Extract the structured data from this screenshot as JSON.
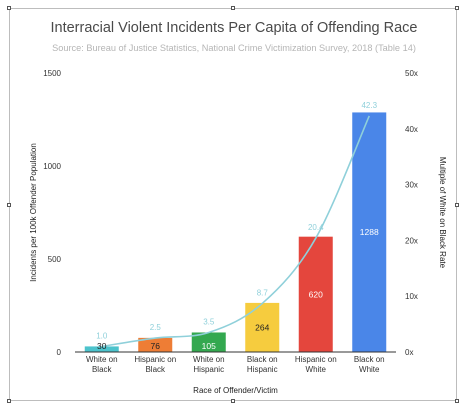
{
  "chart_data": {
    "type": "bar",
    "title": "Interracial Violent Incidents Per Capita of Offending Race",
    "subtitle": "Source: Bureau of Justice Statistics, National Crime Victimization Survey, 2018 (Table 14)",
    "categories": [
      [
        "White on",
        "Black"
      ],
      [
        "Hispanic on",
        "Black"
      ],
      [
        "White on",
        "Hispanic"
      ],
      [
        "Black on",
        "Hispanic"
      ],
      [
        "Hispanic on",
        "White"
      ],
      [
        "Black on",
        "White"
      ]
    ],
    "series": [
      {
        "values": [
          30,
          76,
          105,
          264,
          620,
          1288
        ]
      },
      {
        "values": [
          1.0,
          2.5,
          3.5,
          8.7,
          20.4,
          42.3
        ]
      }
    ],
    "bar_labels": [
      "30",
      "76",
      "105",
      "264",
      "620",
      "1288"
    ],
    "multiple_labels": [
      "1.0",
      "2.5",
      "3.5",
      "8.7",
      "20.4",
      "42.3"
    ],
    "bar_colors": [
      "#4cc3cc",
      "#ee7d35",
      "#33a84f",
      "#f6cc3e",
      "#e4463d",
      "#4a86e8"
    ],
    "bar_label_colors": [
      "#222222",
      "#222222",
      "#ffffff",
      "#222222",
      "#ffffff",
      "#ffffff"
    ],
    "line_color": "#8fd0da",
    "xlabel": "Race of Offender/Victim",
    "ylabel": "Incidents per 100k Offender Population",
    "y2label": "Multiple of White on Black Rate",
    "ylim": [
      0,
      1500
    ],
    "y_ticks": [
      0,
      500,
      1000,
      1500
    ],
    "y_tick_labels": [
      "0",
      "500",
      "1000",
      "1500"
    ],
    "y2lim": [
      0,
      50
    ],
    "y2_ticks": [
      0,
      10,
      20,
      30,
      40,
      50
    ],
    "y2_tick_labels": [
      "0x",
      "10x",
      "20x",
      "30x",
      "40x",
      "50x"
    ],
    "grid": false,
    "legend": "none"
  }
}
